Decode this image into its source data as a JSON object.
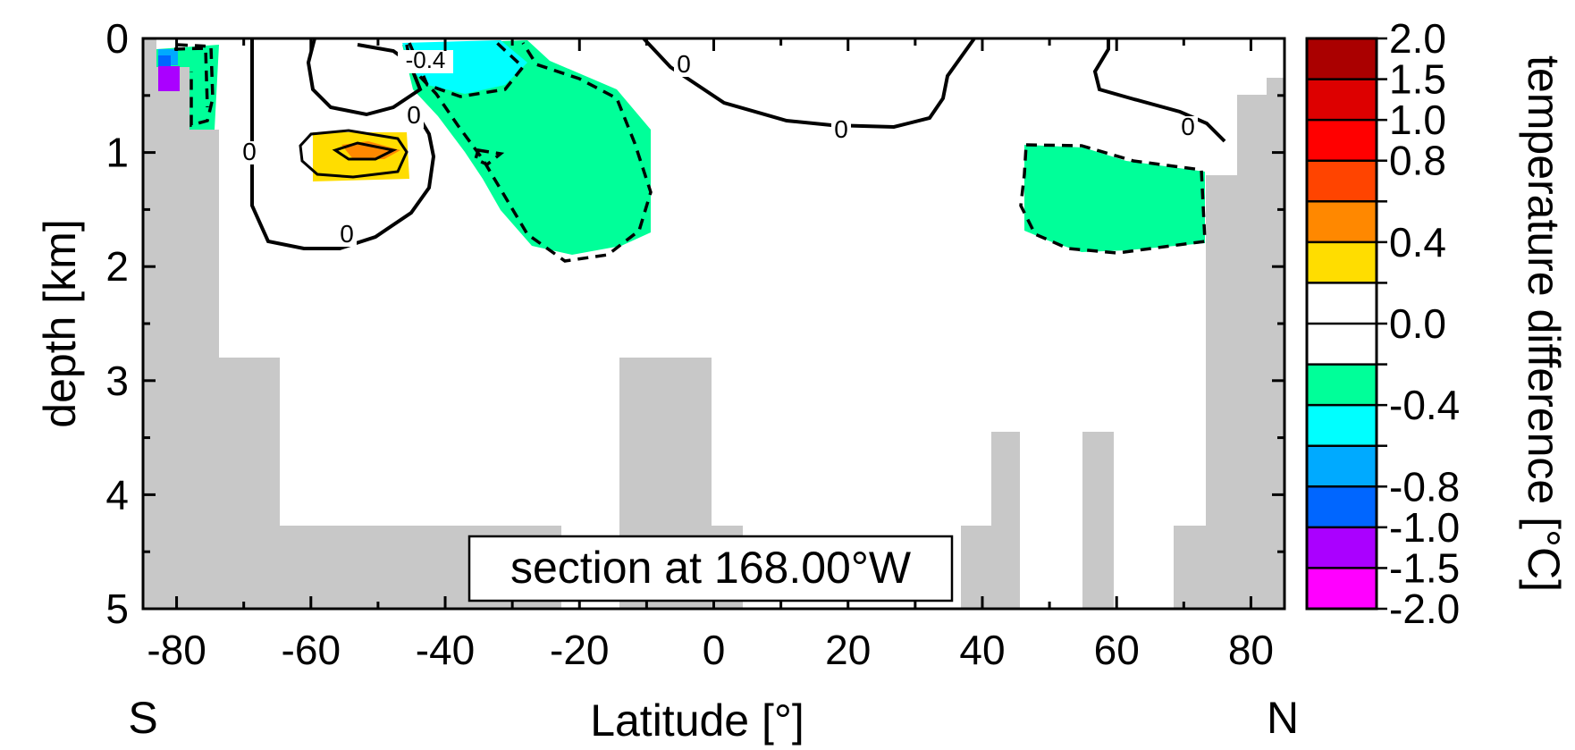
{
  "chart_data": {
    "type": "heatmap",
    "xlabel": "Latitude [°]",
    "ylabel": "depth [km]",
    "colorbar_label": "temperature difference  [°C]",
    "annotation": "section at 168.00°W",
    "x_end_labels": {
      "left": "S",
      "right": "N"
    },
    "xlim": [
      -85,
      85
    ],
    "ylim": [
      5,
      0
    ],
    "x_ticks": [
      -80,
      -60,
      -40,
      -20,
      0,
      20,
      40,
      60,
      80
    ],
    "x_tick_labels": [
      "-80",
      "-60",
      "-40",
      "-20",
      "0",
      "20",
      "40",
      "60",
      "80"
    ],
    "y_ticks": [
      0,
      1,
      2,
      3,
      4,
      5
    ],
    "y_tick_labels": [
      "0",
      "1",
      "2",
      "3",
      "4",
      "5"
    ],
    "colorbar": {
      "bins": [
        {
          "color": "#ff00ff"
        },
        {
          "color": "#aa00ff"
        },
        {
          "color": "#0066ff"
        },
        {
          "color": "#00aaff"
        },
        {
          "color": "#00ffff"
        },
        {
          "color": "#00ff99"
        },
        {
          "color": "#ffffff"
        },
        {
          "color": "#ffffff"
        },
        {
          "color": "#ffdd00"
        },
        {
          "color": "#ff8800"
        },
        {
          "color": "#ff4400"
        },
        {
          "color": "#ff0000"
        },
        {
          "color": "#dd0000"
        },
        {
          "color": "#aa0000"
        }
      ],
      "tick_labels": [
        "-2.0",
        "-1.5",
        "-1.0",
        "-0.8",
        "-0.4",
        "0.0",
        "0.4",
        "0.8",
        "1.0",
        "1.5",
        "2.0"
      ]
    },
    "contour_labels": [
      "0",
      "0",
      "-0.4",
      "0",
      "0",
      "0",
      "0"
    ],
    "colors": {
      "land": "#c8c8c8",
      "neg_small": "#00ff99",
      "neg_mid": "#00ffff",
      "pos_small": "#ffdd00",
      "pos_mid": "#ff8800"
    }
  }
}
